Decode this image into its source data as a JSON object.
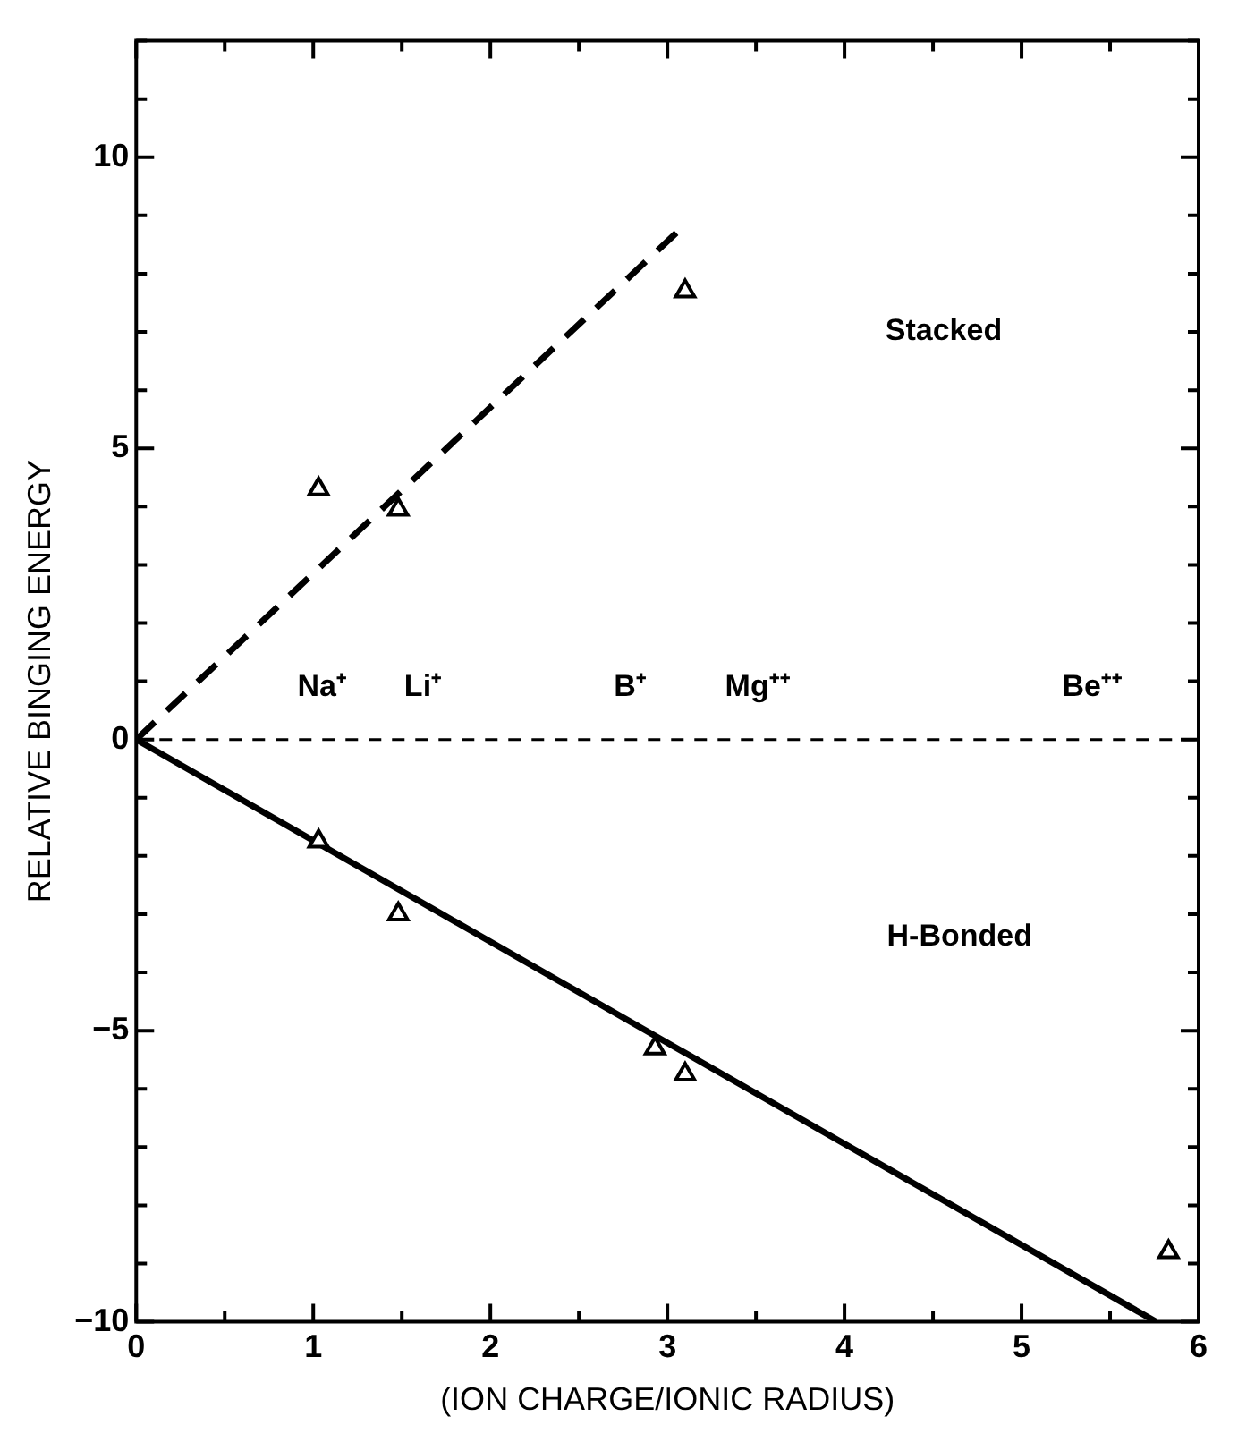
{
  "chart_data": {
    "type": "scatter",
    "xlabel": "(ION CHARGE/IONIC RADIUS)",
    "ylabel": "RELATIVE BINGING ENERGY",
    "xlim": [
      0,
      6
    ],
    "ylim": [
      -10,
      12
    ],
    "xticks": [
      0,
      {
        "value": 0.5,
        "label": null
      },
      1,
      {
        "value": 1.5,
        "label": null
      },
      2,
      {
        "value": 2.5,
        "label": null
      },
      3,
      {
        "value": 3.5,
        "label": null
      },
      4,
      {
        "value": 4.5,
        "label": null
      },
      5,
      {
        "value": 5.5,
        "label": null
      },
      6
    ],
    "yticks": [
      {
        "value": -10,
        "label": "−10"
      },
      {
        "value": -9,
        "label": null
      },
      {
        "value": -8,
        "label": null
      },
      {
        "value": -7,
        "label": null
      },
      {
        "value": -6,
        "label": null
      },
      {
        "value": -5,
        "label": "−5"
      },
      {
        "value": -4,
        "label": null
      },
      {
        "value": -3,
        "label": null
      },
      {
        "value": -2,
        "label": null
      },
      {
        "value": -1,
        "label": null
      },
      0,
      {
        "value": 1,
        "label": null
      },
      {
        "value": 2,
        "label": null
      },
      {
        "value": 3,
        "label": null
      },
      {
        "value": 4,
        "label": null
      },
      5,
      {
        "value": 6,
        "label": null
      },
      {
        "value": 7,
        "label": null
      },
      {
        "value": 8,
        "label": null
      },
      {
        "value": 9,
        "label": null
      },
      10,
      {
        "value": 11,
        "label": null
      },
      {
        "value": 12,
        "label": null
      }
    ],
    "marker": "triangle",
    "grid": false,
    "legend": false,
    "series": [
      {
        "type": "scatter",
        "color": "#000000",
        "x": [
          1.03,
          1.48,
          3.1
        ],
        "values": [
          4.3,
          3.95,
          7.7
        ]
      },
      {
        "type": "scatter",
        "color": "#000000",
        "x": [
          1.03,
          1.48,
          2.93,
          3.1,
          5.83
        ],
        "values": [
          -1.75,
          -3.0,
          -5.3,
          -5.75,
          -8.8
        ]
      },
      {
        "type": "line",
        "color": "#000000",
        "line_style": "dashed",
        "marker": "none",
        "x": [
          0,
          3.05
        ],
        "values": [
          0,
          8.7
        ]
      },
      {
        "type": "line",
        "color": "#000000",
        "line_style": "solid",
        "marker": "none",
        "x": [
          0,
          5.76
        ],
        "values": [
          0,
          -10
        ]
      }
    ],
    "ref_lines": [
      {
        "axis": "y",
        "value": 0,
        "color": "#000000",
        "line_style": "dashed"
      }
    ],
    "annotations": [
      "Na⁺",
      "Li⁺",
      "B⁺",
      "Mg⁺⁺",
      "Be⁺⁺",
      "Stacked",
      "H-Bonded"
    ]
  }
}
